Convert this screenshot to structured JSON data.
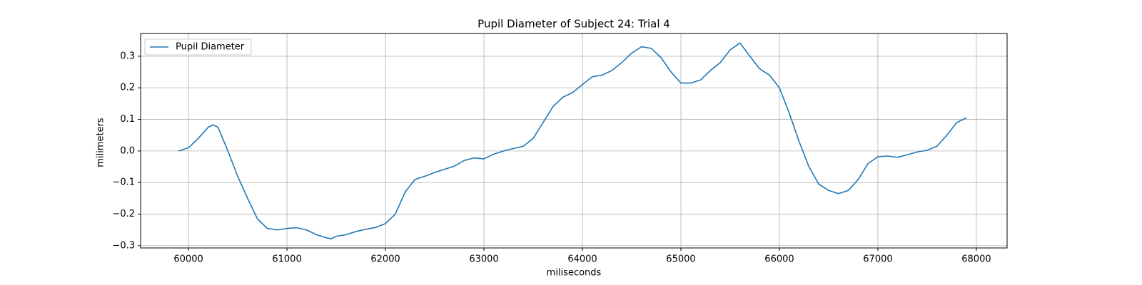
{
  "chart_data": {
    "type": "line",
    "title": "Pupil Diameter of Subject 24: Trial 4",
    "x_label": "miliseconds",
    "y_label": "milimeters",
    "x": [
      59900,
      60000,
      60100,
      60200,
      60250,
      60300,
      60400,
      60500,
      60600,
      60700,
      60800,
      60900,
      61000,
      61100,
      61200,
      61300,
      61400,
      61450,
      61500,
      61600,
      61700,
      61800,
      61900,
      62000,
      62100,
      62200,
      62300,
      62400,
      62500,
      62600,
      62700,
      62800,
      62900,
      63000,
      63100,
      63200,
      63300,
      63400,
      63500,
      63600,
      63700,
      63800,
      63900,
      64000,
      64100,
      64200,
      64300,
      64400,
      64500,
      64600,
      64700,
      64800,
      64900,
      65000,
      65100,
      65200,
      65300,
      65400,
      65500,
      65600,
      65700,
      65800,
      65900,
      66000,
      66100,
      66200,
      66300,
      66400,
      66500,
      66600,
      66700,
      66800,
      66900,
      67000,
      67100,
      67200,
      67300,
      67400,
      67500,
      67600,
      67700,
      67800,
      67900
    ],
    "series": [
      {
        "name": "Pupil Diameter",
        "color": "#1f77b4",
        "values": [
          0.0,
          0.01,
          0.04,
          0.075,
          0.083,
          0.075,
          0.0,
          -0.08,
          -0.15,
          -0.215,
          -0.245,
          -0.25,
          -0.245,
          -0.243,
          -0.25,
          -0.265,
          -0.275,
          -0.278,
          -0.27,
          -0.265,
          -0.255,
          -0.248,
          -0.242,
          -0.23,
          -0.2,
          -0.13,
          -0.09,
          -0.08,
          -0.068,
          -0.058,
          -0.048,
          -0.03,
          -0.022,
          -0.025,
          -0.01,
          0.0,
          0.008,
          0.015,
          0.04,
          0.09,
          0.14,
          0.17,
          0.185,
          0.21,
          0.235,
          0.24,
          0.255,
          0.28,
          0.31,
          0.33,
          0.325,
          0.295,
          0.25,
          0.215,
          0.215,
          0.225,
          0.255,
          0.28,
          0.32,
          0.342,
          0.3,
          0.26,
          0.24,
          0.2,
          0.12,
          0.03,
          -0.05,
          -0.105,
          -0.125,
          -0.135,
          -0.125,
          -0.09,
          -0.04,
          -0.018,
          -0.016,
          -0.02,
          -0.012,
          -0.003,
          0.002,
          0.015,
          0.05,
          0.09,
          0.105
        ]
      }
    ],
    "xlim": [
      59514,
      68312
    ],
    "xticks": [
      60000,
      61000,
      62000,
      63000,
      64000,
      65000,
      66000,
      67000,
      68000
    ],
    "ylim": [
      -0.307,
      0.372
    ],
    "yticks": [
      {
        "value": -0.3,
        "label": "−0.3"
      },
      {
        "value": -0.2,
        "label": "−0.2"
      },
      {
        "value": -0.1,
        "label": "−0.1"
      },
      {
        "value": 0,
        "label": "0.0"
      },
      0.1,
      0.2,
      0.3
    ],
    "grid": true,
    "legend": "upper-left"
  }
}
